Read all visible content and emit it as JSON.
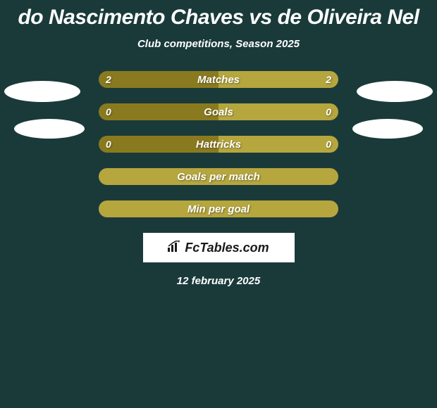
{
  "title": "do Nascimento Chaves vs de Oliveira Nel",
  "subtitle": "Club competitions, Season 2025",
  "date": "12 february 2025",
  "logo_text": "FcTables.com",
  "colors": {
    "background": "#1a3a3a",
    "bar_dark": "#8a7a1f",
    "bar_light": "#b5a63e",
    "bar_full_dark": "#8a7a1f",
    "bar_full_light": "#b5a63e",
    "text": "#ffffff",
    "avatar": "#ffffff"
  },
  "stats": [
    {
      "label": "Matches",
      "left_val": "2",
      "right_val": "2",
      "left_pct": 50,
      "right_pct": 50,
      "left_color": "#8a7a1f",
      "right_color": "#b5a63e",
      "show_values": true
    },
    {
      "label": "Goals",
      "left_val": "0",
      "right_val": "0",
      "left_pct": 50,
      "right_pct": 50,
      "left_color": "#8a7a1f",
      "right_color": "#b5a63e",
      "show_values": true
    },
    {
      "label": "Hattricks",
      "left_val": "0",
      "right_val": "0",
      "left_pct": 50,
      "right_pct": 50,
      "left_color": "#8a7a1f",
      "right_color": "#b5a63e",
      "show_values": true
    },
    {
      "label": "Goals per match",
      "left_val": "",
      "right_val": "",
      "left_pct": 100,
      "right_pct": 0,
      "left_color": "#b5a63e",
      "right_color": "#b5a63e",
      "show_values": false
    },
    {
      "label": "Min per goal",
      "left_val": "",
      "right_val": "",
      "left_pct": 100,
      "right_pct": 0,
      "left_color": "#b5a63e",
      "right_color": "#b5a63e",
      "show_values": false
    }
  ]
}
